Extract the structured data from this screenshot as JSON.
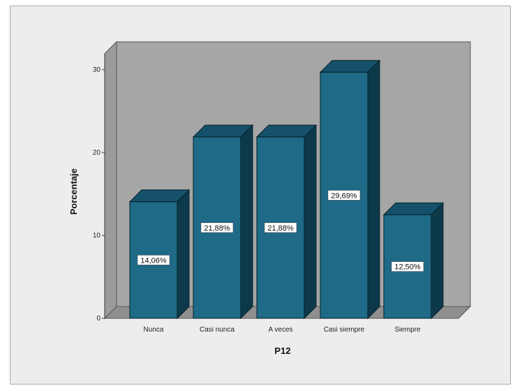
{
  "chart_data": {
    "type": "bar",
    "style": "3d",
    "categories": [
      "Nunca",
      "Casi nunca",
      "A veces",
      "Casi siempre",
      "Siempre"
    ],
    "values": [
      14.06,
      21.88,
      21.88,
      29.69,
      12.5
    ],
    "data_labels": [
      "14,06%",
      "21,88%",
      "21,88%",
      "29,69%",
      "12,50%"
    ],
    "xlabel": "P12",
    "ylabel": "Porcentaje",
    "ylim": [
      0,
      30
    ],
    "yticks": [
      0,
      10,
      20,
      30
    ],
    "grid": false,
    "legend": "none",
    "colors": {
      "bar_front": "#1e6a87",
      "bar_side": "#0d3a4a",
      "bar_top": "#15516a",
      "wall": "#a6a6a6",
      "floor": "#8f8f8f",
      "background": "#ededed"
    }
  }
}
